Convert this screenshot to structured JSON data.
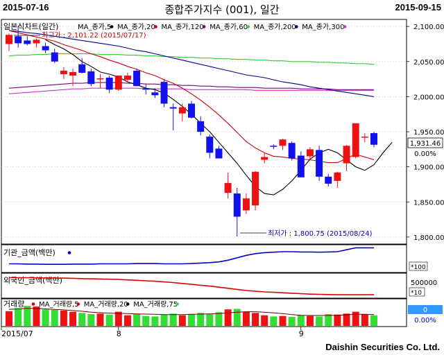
{
  "header": {
    "start_date": "2015-07-16",
    "title": "종합주가지수 (001), 일간",
    "end_date": "2015-09-15"
  },
  "footer": {
    "company": "Daishin Securities Co. Ltd."
  },
  "price_legend": {
    "label": "일본식차트(일간)",
    "items": [
      {
        "label": "MA_종가,5",
        "color": "#000000"
      },
      {
        "label": "MA_종가,20",
        "color": "#cc0000"
      },
      {
        "label": "MA_종가,120",
        "color": "#800080"
      },
      {
        "label": "MA_종가,60",
        "color": "#33cc33"
      },
      {
        "label": "MA_종가,200",
        "color": "#000099"
      },
      {
        "label": "MA_종가,300",
        "color": "#cc33cc"
      }
    ]
  },
  "annotations": {
    "high": "최고가 : 2,101.22 (2015/07/17)",
    "low": "최저가 : 1,800.75 (2015/08/24)",
    "last_price": "1,931.46",
    "change_pct": "0.00%",
    "volume_last": "0",
    "volume_pct": "0.00%"
  },
  "panels": {
    "inst_label": "기관_금액(백만)",
    "inst_scale": "*100",
    "foreign_label": "외국인_금액(백만)",
    "foreign_tick": "500000",
    "foreign_scale": "*10",
    "volume_label": "거래량",
    "volume_legend": [
      "MA_거래량,5",
      "MA_거래량,20",
      "MA_거래량,75"
    ]
  },
  "x_labels": [
    {
      "label": "2015/07",
      "index": 0
    },
    {
      "label": "8",
      "index": 12
    },
    {
      "label": "9",
      "index": 32
    }
  ],
  "colors": {
    "up": "#ee1111",
    "down": "#1111ee",
    "ma5": "#000000",
    "ma20": "#cc0000",
    "ma60": "#33cc33",
    "ma120": "#800080",
    "ma200": "#000099",
    "ma300": "#cc33cc",
    "inst": "#0000cc",
    "foreign": "#dd0000",
    "vol_up": "#ee1111",
    "vol_down": "#33dd33"
  },
  "chart_data": {
    "type": "candlestick",
    "y_ticks": [
      1800,
      1850,
      1900,
      1950,
      2000,
      2050,
      2100
    ],
    "ylim": [
      1790,
      2110
    ],
    "candles": [
      {
        "o": 2075,
        "h": 2090,
        "l": 2065,
        "c": 2088
      },
      {
        "o": 2086,
        "h": 2101.22,
        "l": 2070,
        "c": 2076
      },
      {
        "o": 2080,
        "h": 2086,
        "l": 2073,
        "c": 2075
      },
      {
        "o": 2076,
        "h": 2083,
        "l": 2070,
        "c": 2081
      },
      {
        "o": 2072,
        "h": 2077,
        "l": 2062,
        "c": 2066
      },
      {
        "o": 2063,
        "h": 2068,
        "l": 2048,
        "c": 2050
      },
      {
        "o": 2032,
        "h": 2042,
        "l": 2025,
        "c": 2037
      },
      {
        "o": 2030,
        "h": 2040,
        "l": 2015,
        "c": 2035
      },
      {
        "o": 2046,
        "h": 2055,
        "l": 2033,
        "c": 2034
      },
      {
        "o": 2036,
        "h": 2040,
        "l": 2015,
        "c": 2018
      },
      {
        "o": 2025,
        "h": 2032,
        "l": 2012,
        "c": 2026
      },
      {
        "o": 2027,
        "h": 2030,
        "l": 2005,
        "c": 2010
      },
      {
        "o": 2010,
        "h": 2030,
        "l": 2008,
        "c": 2030
      },
      {
        "o": 2024,
        "h": 2034,
        "l": 2020,
        "c": 2030
      },
      {
        "o": 2037,
        "h": 2040,
        "l": 2015,
        "c": 2015
      },
      {
        "o": 2012,
        "h": 2018,
        "l": 2003,
        "c": 2010
      },
      {
        "o": 2006,
        "h": 2012,
        "l": 1998,
        "c": 2002
      },
      {
        "o": 2021,
        "h": 2025,
        "l": 1985,
        "c": 1990
      },
      {
        "o": 1985,
        "h": 1990,
        "l": 1952,
        "c": 1983
      },
      {
        "o": 1976,
        "h": 1990,
        "l": 1965,
        "c": 1985
      },
      {
        "o": 1990,
        "h": 1994,
        "l": 1969,
        "c": 1970
      },
      {
        "o": 1965,
        "h": 1972,
        "l": 1945,
        "c": 1950
      },
      {
        "o": 1943,
        "h": 1946,
        "l": 1912,
        "c": 1920
      },
      {
        "o": 1926,
        "h": 1930,
        "l": 1912,
        "c": 1912
      },
      {
        "o": 1863,
        "h": 1892,
        "l": 1855,
        "c": 1877
      },
      {
        "o": 1862,
        "h": 1870,
        "l": 1800.75,
        "c": 1829
      },
      {
        "o": 1838,
        "h": 1862,
        "l": 1833,
        "c": 1855
      },
      {
        "o": 1845,
        "h": 1894,
        "l": 1838,
        "c": 1893
      },
      {
        "o": 1910,
        "h": 1920,
        "l": 1905,
        "c": 1914
      },
      {
        "o": 1930,
        "h": 1932,
        "l": 1925,
        "c": 1929
      },
      {
        "o": 1930,
        "h": 1940,
        "l": 1924,
        "c": 1939
      },
      {
        "o": 1934,
        "h": 1936,
        "l": 1909,
        "c": 1912
      },
      {
        "o": 1916,
        "h": 1922,
        "l": 1886,
        "c": 1885
      },
      {
        "o": 1915,
        "h": 1928,
        "l": 1910,
        "c": 1925
      },
      {
        "o": 1924,
        "h": 1930,
        "l": 1880,
        "c": 1886
      },
      {
        "o": 1886,
        "h": 1890,
        "l": 1872,
        "c": 1876
      },
      {
        "o": 1880,
        "h": 1893,
        "l": 1870,
        "c": 1892
      },
      {
        "o": 1905,
        "h": 1931,
        "l": 1894,
        "c": 1930
      },
      {
        "o": 1914,
        "h": 1962,
        "l": 1912,
        "c": 1962
      },
      {
        "o": 1943,
        "h": 1948,
        "l": 1935,
        "c": 1943
      },
      {
        "o": 1948,
        "h": 1950,
        "l": 1928,
        "c": 1931.46
      }
    ],
    "ma": {
      "ma5": {
        "start": 4,
        "values": [
          2081,
          2074,
          2068,
          2060,
          2050,
          2043,
          2035,
          2032,
          2028,
          2021,
          2017,
          2012,
          2010,
          2005,
          1996,
          1986,
          1975,
          1962,
          1950,
          1935,
          1920,
          1905,
          1888,
          1872,
          1862,
          1860,
          1868,
          1880,
          1895,
          1911,
          1920,
          1925,
          1920,
          1910,
          1900,
          1895,
          1903,
          1920,
          1935
        ]
      },
      "ma20": {
        "start": 0,
        "values": [
          2094,
          2091,
          2088,
          2085,
          2082,
          2079,
          2074,
          2070,
          2066,
          2061,
          2057,
          2052,
          2048,
          2043,
          2039,
          2034,
          2030,
          2024,
          2019,
          2012,
          2004,
          1995,
          1985,
          1974,
          1962,
          1949,
          1936,
          1927,
          1920,
          1915,
          1914,
          1912,
          1911,
          1910,
          1908,
          1906,
          1906,
          1912,
          1918,
          1914,
          1910
        ]
      },
      "ma60": {
        "start": 0,
        "values": [
          2058,
          2059,
          2059,
          2060,
          2060,
          2061,
          2061,
          2061,
          2061,
          2061,
          2060,
          2060,
          2060,
          2059,
          2059,
          2058,
          2058,
          2057,
          2057,
          2056,
          2056,
          2055,
          2055,
          2054,
          2054,
          2053,
          2053,
          2052,
          2052,
          2051,
          2051,
          2050,
          2050,
          2050,
          2049,
          2049,
          2048,
          2048,
          2047,
          2047,
          2046
        ]
      },
      "ma120": {
        "start": 0,
        "values": [
          2012,
          2013,
          2014,
          2015,
          2016,
          2017,
          2018,
          2019,
          2019,
          2020,
          2020,
          2020,
          2020,
          2019,
          2019,
          2018,
          2018,
          2017,
          2017,
          2016,
          2016,
          2015,
          2015,
          2014,
          2014,
          2013,
          2013,
          2013,
          2012,
          2012,
          2012,
          2012,
          2011,
          2011,
          2011,
          2011,
          2010,
          2010,
          2010,
          2010,
          2010
        ]
      },
      "ma200": {
        "start": 0,
        "values": [
          2094,
          2093,
          2091,
          2090,
          2088,
          2086,
          2084,
          2082,
          2080,
          2078,
          2076,
          2074,
          2072,
          2069,
          2066,
          2064,
          2061,
          2058,
          2055,
          2052,
          2049,
          2046,
          2043,
          2040,
          2037,
          2034,
          2031,
          2029,
          2027,
          2024,
          2021,
          2019,
          2017,
          2014,
          2012,
          2010,
          2008,
          2006,
          2004,
          2002,
          2000
        ]
      },
      "ma300": {
        "start": 0,
        "values": [
          2004,
          2005,
          2006,
          2007,
          2008,
          2009,
          2010,
          2011,
          2011,
          2012,
          2012,
          2012,
          2012,
          2012,
          2012,
          2011,
          2011,
          2011,
          2011,
          2011,
          2010,
          2010,
          2010,
          2010,
          2010,
          2010,
          2010,
          2009,
          2009,
          2009,
          2009,
          2009,
          2009,
          2009,
          2009,
          2009,
          2009,
          2009,
          2009,
          2009,
          2009
        ]
      }
    },
    "institution_amount": [
      0.3,
      0.3,
      0.29,
      0.29,
      0.28,
      0.28,
      0.28,
      0.29,
      0.29,
      0.29,
      0.3,
      0.3,
      0.3,
      0.3,
      0.31,
      0.31,
      0.31,
      0.3,
      0.3,
      0.3,
      0.31,
      0.33,
      0.35,
      0.38,
      0.45,
      0.55,
      0.65,
      0.72,
      0.76,
      0.78,
      0.8,
      0.8,
      0.79,
      0.79,
      0.78,
      0.79,
      0.8,
      0.88,
      0.96,
      0.96,
      0.96
    ],
    "foreign_amount": [
      0.86,
      0.86,
      0.86,
      0.85,
      0.85,
      0.84,
      0.84,
      0.83,
      0.82,
      0.81,
      0.8,
      0.79,
      0.78,
      0.76,
      0.74,
      0.72,
      0.7,
      0.67,
      0.64,
      0.6,
      0.56,
      0.52,
      0.48,
      0.43,
      0.38,
      0.33,
      0.28,
      0.25,
      0.22,
      0.2,
      0.18,
      0.16,
      0.14,
      0.12,
      0.11,
      0.1,
      0.09,
      0.09,
      0.09,
      0.09,
      0.09
    ],
    "volume": [
      0.62,
      0.75,
      0.85,
      0.82,
      0.7,
      0.68,
      0.65,
      0.6,
      0.55,
      0.5,
      0.52,
      0.48,
      0.6,
      0.45,
      0.5,
      0.42,
      0.4,
      0.48,
      0.52,
      0.45,
      0.5,
      0.55,
      0.5,
      0.58,
      0.7,
      0.72,
      0.6,
      0.55,
      0.45,
      0.4,
      0.42,
      0.38,
      0.45,
      0.42,
      0.4,
      0.5,
      0.48,
      0.52,
      0.6,
      0.5,
      0.45
    ],
    "volume_ma": [
      0.7,
      0.72,
      0.74,
      0.74,
      0.72,
      0.7,
      0.68,
      0.65,
      0.62,
      0.58,
      0.56,
      0.54,
      0.53,
      0.52,
      0.51,
      0.5,
      0.49,
      0.48,
      0.48,
      0.48,
      0.49,
      0.5,
      0.51,
      0.52,
      0.55,
      0.58,
      0.6,
      0.6,
      0.58,
      0.55,
      0.52,
      0.48,
      0.45,
      0.44,
      0.44,
      0.44,
      0.45,
      0.47,
      0.49,
      0.49,
      0.48
    ]
  }
}
